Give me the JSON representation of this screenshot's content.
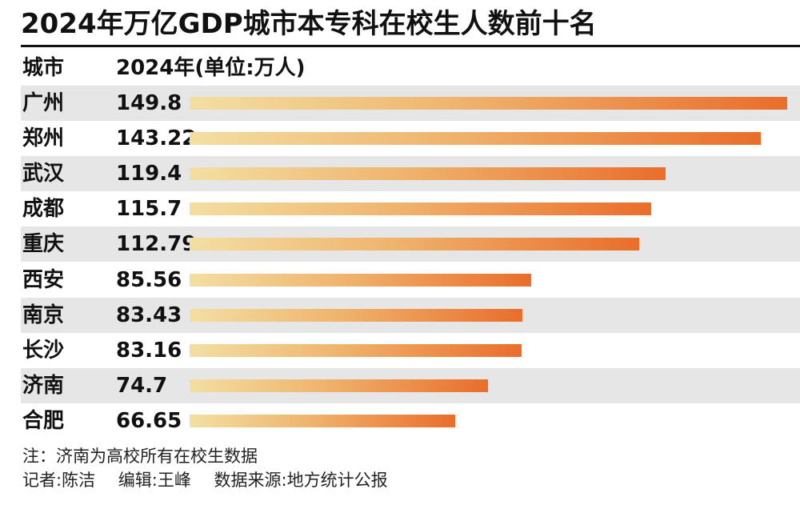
{
  "title": "2024年万亿GDP城市本专科在校生人数前十名",
  "header": {
    "city": "城市",
    "value": "2024年(单位:万人)"
  },
  "chart_data": {
    "type": "bar",
    "orientation": "horizontal",
    "categories": [
      "广州",
      "郑州",
      "武汉",
      "成都",
      "重庆",
      "西安",
      "南京",
      "长沙",
      "济南",
      "合肥"
    ],
    "values": [
      149.8,
      143.22,
      119.4,
      115.7,
      112.79,
      85.56,
      83.43,
      83.16,
      74.7,
      66.65
    ],
    "value_labels": [
      "149.8",
      "143.22",
      "119.4",
      "115.7",
      "112.79",
      "85.56",
      "83.43",
      "83.16",
      "74.7",
      "66.65"
    ],
    "xlim": [
      0,
      149.8
    ],
    "colors": {
      "bar_start": "#f3dfa2",
      "bar_end": "#ea6d2b",
      "row_shade": "#e6e6e6"
    }
  },
  "note": "注：济南为高校所有在校生数据",
  "credits": {
    "reporter": "记者:陈洁",
    "editor": "编辑:王峰",
    "source": "数据来源:地方统计公报"
  }
}
